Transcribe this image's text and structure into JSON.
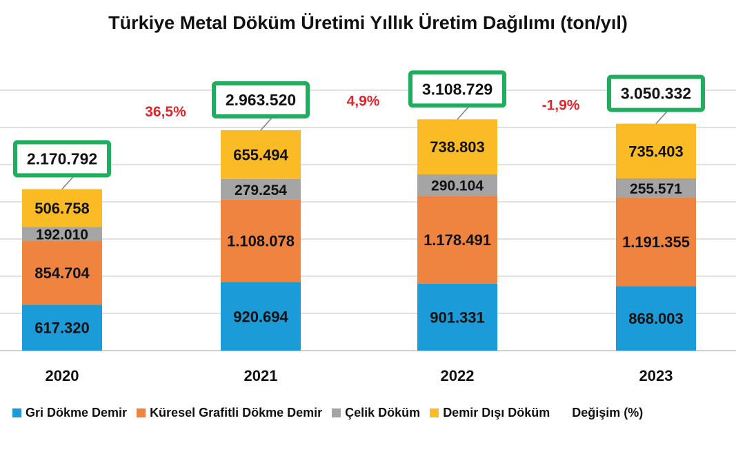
{
  "chart_data": {
    "type": "bar",
    "stacked": true,
    "title": "Türkiye Metal Döküm Üretimi Yıllık Üretim Dağılımı (ton/yıl)",
    "categories": [
      "2020",
      "2021",
      "2022",
      "2023"
    ],
    "series": [
      {
        "name": "Gri Dökme Demir",
        "color": "#1B9BD7",
        "values": [
          617320,
          920694,
          901331,
          868003
        ],
        "labels": [
          "617.320",
          "920.694",
          "901.331",
          "868.003"
        ]
      },
      {
        "name": "Küresel Grafitli Dökme Demir",
        "color": "#EF8340",
        "values": [
          854704,
          1108078,
          1178491,
          1191355
        ],
        "labels": [
          "854.704",
          "1.108.078",
          "1.178.491",
          "1.191.355"
        ]
      },
      {
        "name": "Çelik Döküm",
        "color": "#A5A5A5",
        "values": [
          192010,
          279254,
          290104,
          255571
        ],
        "labels": [
          "192.010",
          "279.254",
          "290.104",
          "255.571"
        ]
      },
      {
        "name": "Demir Dışı Döküm",
        "color": "#FBBB25",
        "values": [
          506758,
          655494,
          738803,
          735403
        ],
        "labels": [
          "506.758",
          "655.494",
          "738.803",
          "735.403"
        ]
      }
    ],
    "totals": [
      2170792,
      2963520,
      3108729,
      3050332
    ],
    "total_labels": [
      "2.170.792",
      "2.963.520",
      "3.108.729",
      "3.050.332"
    ],
    "total_box_color": "#1FAE5E",
    "change_legend_label": "Değişim (%)",
    "changes": [
      null,
      36.5,
      4.9,
      -1.9
    ],
    "change_labels": [
      "",
      "36,5%",
      "4,9%",
      "-1,9%"
    ],
    "change_color": "#E0252A",
    "ylim": [
      0,
      3500000
    ],
    "gridlines": true,
    "legend_position": "bottom"
  }
}
